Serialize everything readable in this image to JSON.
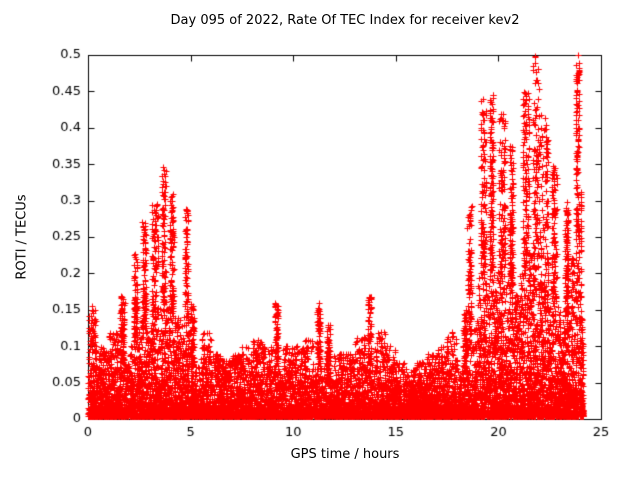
{
  "chart_data": {
    "type": "scatter",
    "title": "Day 095 of 2022, Rate Of TEC Index for receiver kev2",
    "xlabel": "GPS time / hours",
    "ylabel": "ROTI / TECUs",
    "xlim": [
      0,
      25
    ],
    "ylim": [
      0,
      0.5
    ],
    "x_ticks": [
      0,
      5,
      10,
      15,
      20,
      25
    ],
    "x_tick_labels": [
      "0",
      "5",
      "10",
      "15",
      "20",
      "25"
    ],
    "y_ticks": [
      0,
      0.05,
      0.1,
      0.15,
      0.2,
      0.25,
      0.3,
      0.35,
      0.4,
      0.45,
      0.5
    ],
    "y_tick_labels": [
      "0",
      "0.05",
      "0.1",
      "0.15",
      "0.2",
      "0.25",
      "0.3",
      "0.35",
      "0.4",
      "0.45",
      "0.5"
    ],
    "marker": "plus",
    "marker_color": "#ff0000",
    "axis_color": "#000000",
    "background": "#ffffff",
    "grid": false,
    "legend": "none",
    "density_bins": {
      "description": "Scatter envelope per time bin: [x0 hour, bin width hours, max ROTI in bin, approx point count]. Dense baseline band near 0-0.05 TECU all day; activity bursts 02-05h (to ~0.35) and 18.5-24h (to ~0.5); isolated spikes near 9.2h, 11.2h, 13.6h (~0.16).",
      "bins": [
        [
          0.0,
          0.5,
          0.16,
          300
        ],
        [
          0.5,
          0.5,
          0.1,
          260
        ],
        [
          1.0,
          0.5,
          0.12,
          260
        ],
        [
          1.5,
          0.5,
          0.17,
          280
        ],
        [
          2.0,
          0.5,
          0.23,
          320
        ],
        [
          2.5,
          0.5,
          0.27,
          340
        ],
        [
          3.0,
          0.5,
          0.3,
          360
        ],
        [
          3.5,
          0.5,
          0.35,
          380
        ],
        [
          4.0,
          0.5,
          0.31,
          340
        ],
        [
          4.5,
          0.5,
          0.29,
          320
        ],
        [
          5.0,
          0.5,
          0.16,
          260
        ],
        [
          5.5,
          0.5,
          0.12,
          240
        ],
        [
          6.0,
          0.5,
          0.09,
          230
        ],
        [
          6.5,
          0.5,
          0.08,
          220
        ],
        [
          7.0,
          0.5,
          0.09,
          220
        ],
        [
          7.5,
          0.5,
          0.1,
          230
        ],
        [
          8.0,
          0.5,
          0.11,
          230
        ],
        [
          8.5,
          0.5,
          0.1,
          220
        ],
        [
          9.0,
          0.5,
          0.16,
          240
        ],
        [
          9.5,
          0.5,
          0.1,
          220
        ],
        [
          10.0,
          0.5,
          0.1,
          220
        ],
        [
          10.5,
          0.5,
          0.11,
          230
        ],
        [
          11.0,
          0.5,
          0.16,
          240
        ],
        [
          11.5,
          0.5,
          0.13,
          230
        ],
        [
          12.0,
          0.5,
          0.09,
          220
        ],
        [
          12.5,
          0.5,
          0.09,
          220
        ],
        [
          13.0,
          0.5,
          0.12,
          230
        ],
        [
          13.5,
          0.5,
          0.17,
          240
        ],
        [
          14.0,
          0.5,
          0.12,
          230
        ],
        [
          14.5,
          0.5,
          0.1,
          220
        ],
        [
          15.0,
          0.5,
          0.08,
          220
        ],
        [
          15.5,
          0.5,
          0.07,
          210
        ],
        [
          16.0,
          0.5,
          0.08,
          210
        ],
        [
          16.5,
          0.5,
          0.09,
          220
        ],
        [
          17.0,
          0.5,
          0.1,
          220
        ],
        [
          17.5,
          0.5,
          0.12,
          230
        ],
        [
          18.0,
          0.5,
          0.15,
          250
        ],
        [
          18.5,
          0.5,
          0.3,
          320
        ],
        [
          19.0,
          0.5,
          0.44,
          400
        ],
        [
          19.5,
          0.5,
          0.45,
          420
        ],
        [
          20.0,
          0.5,
          0.42,
          420
        ],
        [
          20.5,
          0.5,
          0.38,
          400
        ],
        [
          21.0,
          0.5,
          0.45,
          420
        ],
        [
          21.5,
          0.5,
          0.5,
          430
        ],
        [
          22.0,
          0.5,
          0.42,
          400
        ],
        [
          22.5,
          0.5,
          0.35,
          380
        ],
        [
          23.0,
          0.5,
          0.3,
          360
        ],
        [
          23.5,
          0.5,
          0.5,
          380
        ],
        [
          24.0,
          0.12,
          0.32,
          140
        ]
      ]
    }
  }
}
